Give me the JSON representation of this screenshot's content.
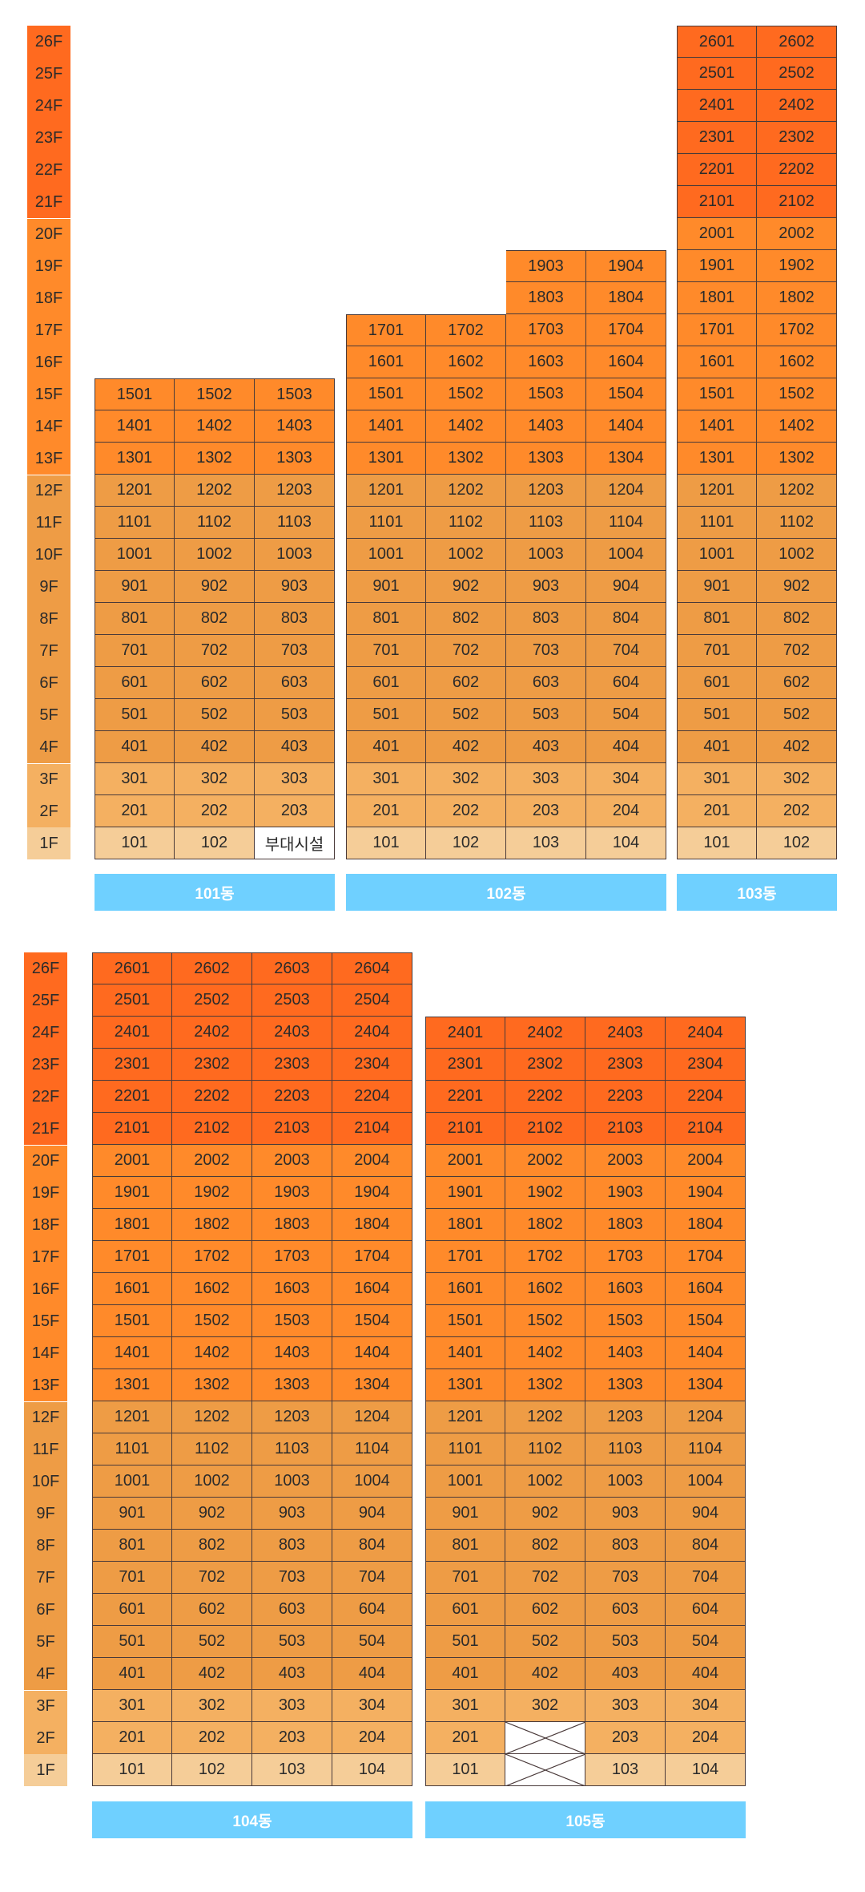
{
  "colors": {
    "band_top": "#ff6a1f",
    "band_upper": "#ff8a2a",
    "band_mid": "#ee9c45",
    "band_low": "#f4b061",
    "band_ground": "#f5cd98",
    "amenity": "#ffffff",
    "label_bar": "#6fd0ff"
  },
  "floor_labels": [
    "26F",
    "25F",
    "24F",
    "23F",
    "22F",
    "21F",
    "20F",
    "19F",
    "18F",
    "17F",
    "16F",
    "15F",
    "14F",
    "13F",
    "12F",
    "11F",
    "10F",
    "9F",
    "8F",
    "7F",
    "6F",
    "5F",
    "4F",
    "3F",
    "2F",
    "1F"
  ],
  "sections": [
    {
      "buildings": [
        {
          "name": "101동",
          "floors": 15,
          "lines": 3,
          "special": {
            "1-3": {
              "type": "amenity",
              "label": "부대시설"
            }
          }
        },
        {
          "name": "102동",
          "floors": 17,
          "lines": 4,
          "extra": {
            "lines": [
              3,
              4
            ],
            "floors": 19
          }
        },
        {
          "name": "103동",
          "floors": 26,
          "lines": 2
        }
      ]
    },
    {
      "buildings": [
        {
          "name": "104동",
          "floors": 26,
          "lines": 4
        },
        {
          "name": "105동",
          "floors": 24,
          "lines": 4,
          "special": {
            "1-2": {
              "type": "cross"
            },
            "2-2": {
              "type": "cross"
            }
          }
        }
      ]
    }
  ]
}
